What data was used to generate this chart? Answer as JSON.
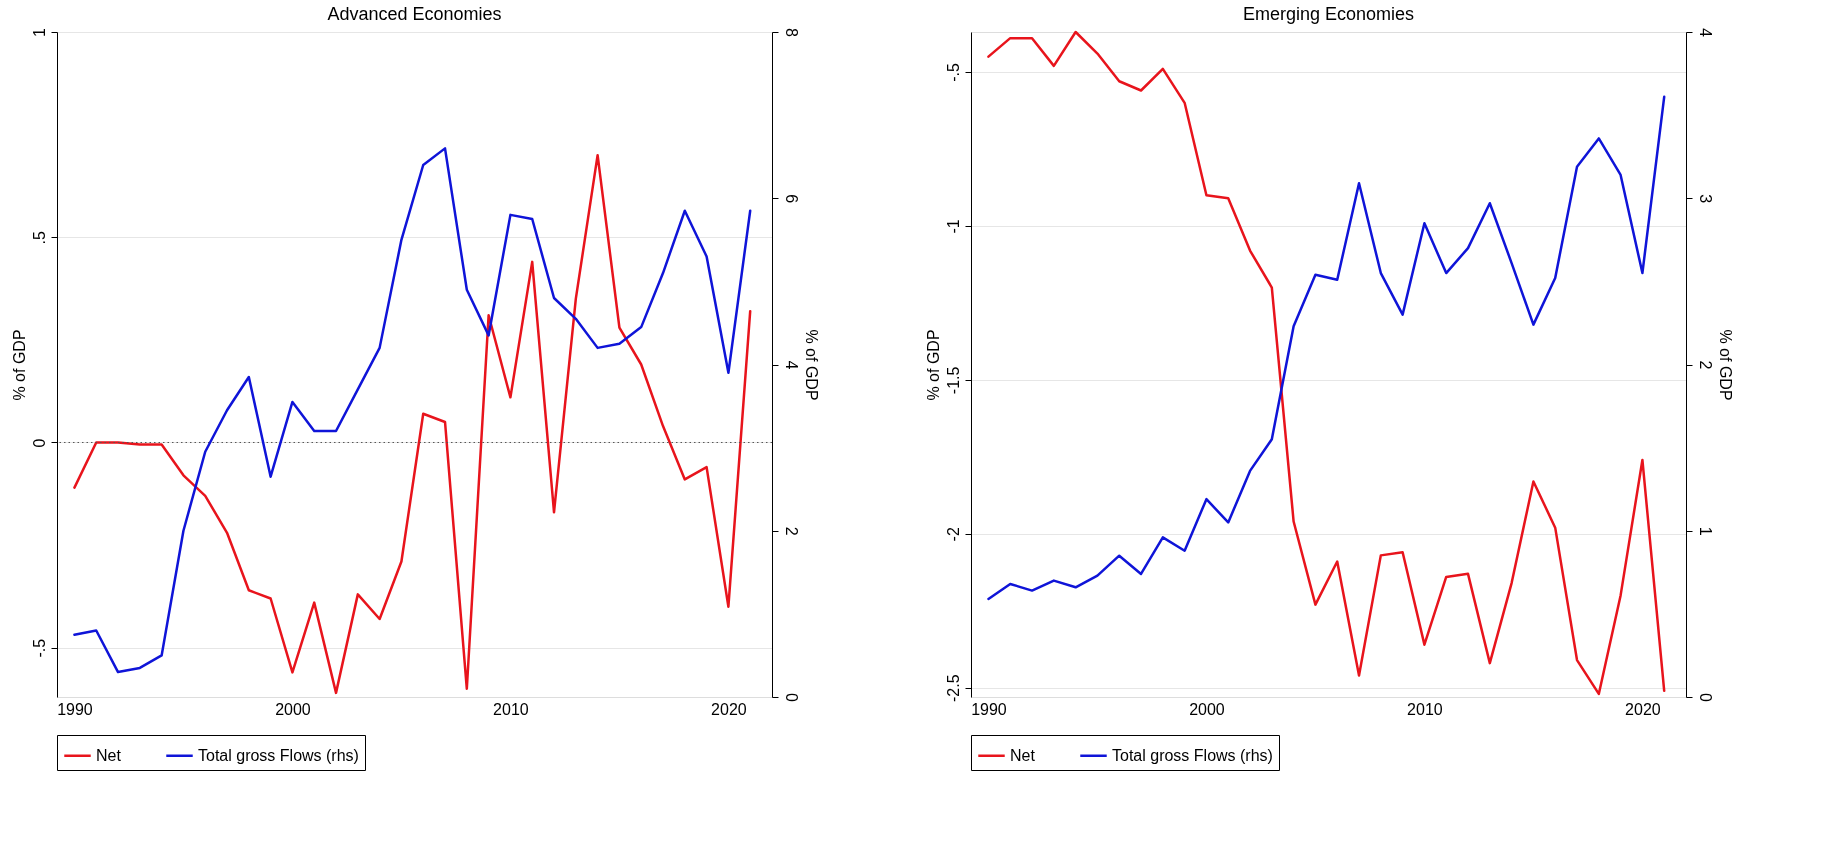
{
  "chart_data": [
    {
      "type": "line",
      "title": "Advanced Economies",
      "ylabel": "% of GDP",
      "y2label": "% of GDP",
      "grid": "y",
      "legend": "bottom",
      "x": [
        1990,
        1991,
        1992,
        1993,
        1994,
        1995,
        1996,
        1997,
        1998,
        1999,
        2000,
        2001,
        2002,
        2003,
        2004,
        2005,
        2006,
        2007,
        2008,
        2009,
        2010,
        2011,
        2012,
        2013,
        2014,
        2015,
        2016,
        2017,
        2018,
        2019,
        2020,
        2021
      ],
      "xlim": [
        1989.2,
        2022
      ],
      "xticks": [
        1990,
        2000,
        2010,
        2020
      ],
      "ylim": [
        -0.62,
        1
      ],
      "yticks": [
        {
          "value": -0.5,
          "label": "-.5"
        },
        0,
        {
          "value": 0.5,
          "label": ".5"
        },
        1
      ],
      "y2lim": [
        0,
        8
      ],
      "y2ticks": [
        0,
        2,
        4,
        6,
        8
      ],
      "ref_lines": [
        {
          "axis": "y",
          "value": 0,
          "line_style": "dotted"
        }
      ],
      "series": [
        {
          "name": "Net",
          "color": "#e8141c",
          "values": [
            -0.11,
            0.0,
            0.0,
            -0.005,
            -0.005,
            -0.08,
            -0.13,
            -0.22,
            -0.36,
            -0.38,
            -0.56,
            -0.39,
            -0.61,
            -0.37,
            -0.43,
            -0.29,
            0.07,
            0.05,
            -0.6,
            0.31,
            0.11,
            0.44,
            -0.17,
            0.35,
            0.7,
            0.28,
            0.19,
            0.04,
            -0.09,
            -0.06,
            -0.4,
            0.32
          ]
        },
        {
          "name": "Total gross Flows (rhs)",
          "color": "#0f14d8",
          "axis": "y2",
          "values": [
            0.75,
            0.8,
            0.3,
            0.35,
            0.5,
            2.0,
            2.95,
            3.45,
            3.85,
            2.65,
            3.55,
            3.2,
            3.2,
            3.7,
            4.2,
            5.5,
            6.4,
            6.6,
            4.9,
            4.35,
            5.8,
            5.75,
            4.8,
            4.55,
            4.2,
            4.25,
            4.45,
            5.1,
            5.85,
            5.3,
            3.9,
            5.85
          ]
        }
      ]
    },
    {
      "type": "line",
      "title": "Emerging Economies",
      "ylabel": "% of GDP",
      "y2label": "% of GDP",
      "grid": "y",
      "legend": "bottom",
      "x": [
        1990,
        1991,
        1992,
        1993,
        1994,
        1995,
        1996,
        1997,
        1998,
        1999,
        2000,
        2001,
        2002,
        2003,
        2004,
        2005,
        2006,
        2007,
        2008,
        2009,
        2010,
        2011,
        2012,
        2013,
        2014,
        2015,
        2016,
        2017,
        2018,
        2019,
        2020,
        2021
      ],
      "xlim": [
        1989.2,
        2022
      ],
      "xticks": [
        1990,
        2000,
        2010,
        2020
      ],
      "ylim": [
        -2.53,
        -0.37
      ],
      "yticks": [
        {
          "value": -2.5,
          "label": "-2.5"
        },
        -2,
        {
          "value": -1.5,
          "label": "-1.5"
        },
        -1,
        {
          "value": -0.5,
          "label": "-.5"
        }
      ],
      "y2lim": [
        0,
        4
      ],
      "y2ticks": [
        0,
        1,
        2,
        3,
        4
      ],
      "series": [
        {
          "name": "Net",
          "color": "#e8141c",
          "values": [
            -0.45,
            -0.39,
            -0.39,
            -0.48,
            -0.37,
            -0.44,
            -0.53,
            -0.56,
            -0.49,
            -0.6,
            -0.9,
            -0.91,
            -1.08,
            -1.2,
            -1.96,
            -2.23,
            -2.09,
            -2.46,
            -2.07,
            -2.06,
            -2.36,
            -2.14,
            -2.13,
            -2.42,
            -2.16,
            -1.83,
            -1.98,
            -2.41,
            -2.52,
            -2.2,
            -1.76,
            -2.51
          ]
        },
        {
          "name": "Total gross Flows (rhs)",
          "color": "#0f14d8",
          "axis": "y2",
          "values": [
            0.59,
            0.68,
            0.64,
            0.7,
            0.66,
            0.73,
            0.85,
            0.74,
            0.96,
            0.88,
            1.19,
            1.05,
            1.36,
            1.55,
            2.23,
            2.54,
            2.51,
            3.09,
            2.55,
            2.3,
            2.85,
            2.55,
            2.7,
            2.97,
            2.61,
            2.24,
            2.52,
            3.19,
            3.36,
            3.14,
            2.55,
            3.61
          ]
        }
      ]
    }
  ]
}
